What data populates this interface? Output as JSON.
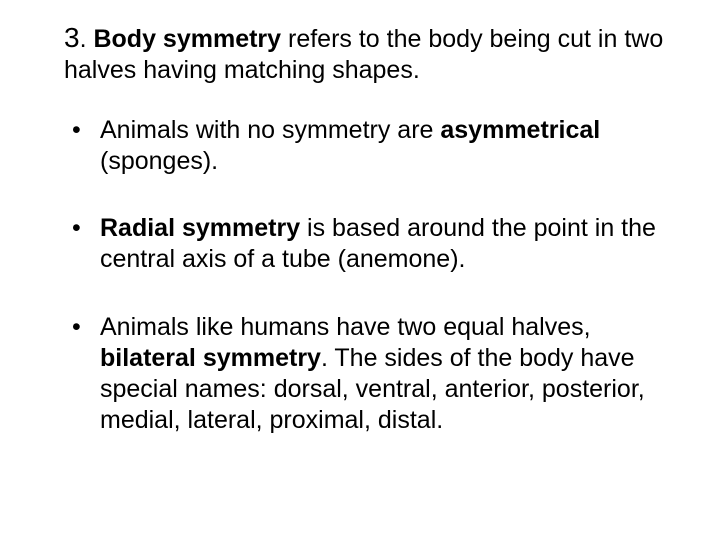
{
  "heading": {
    "number": "3",
    "term": "Body symmetry",
    "rest1": " refers to the body being cut in two halves having matching shapes."
  },
  "bullets": [
    {
      "pre": "Animals with no symmetry are ",
      "bold": "asymmetrical",
      "post": " (sponges)."
    },
    {
      "bold": "Radial symmetry",
      "post": " is based around the point in the central axis of a tube (anemone)."
    },
    {
      "pre": "Animals like humans have two equal halves, ",
      "bold": "bilateral symmetry",
      "post": ". The sides of the body have special names: dorsal, ventral, anterior, posterior, medial, lateral, proximal, distal."
    }
  ]
}
